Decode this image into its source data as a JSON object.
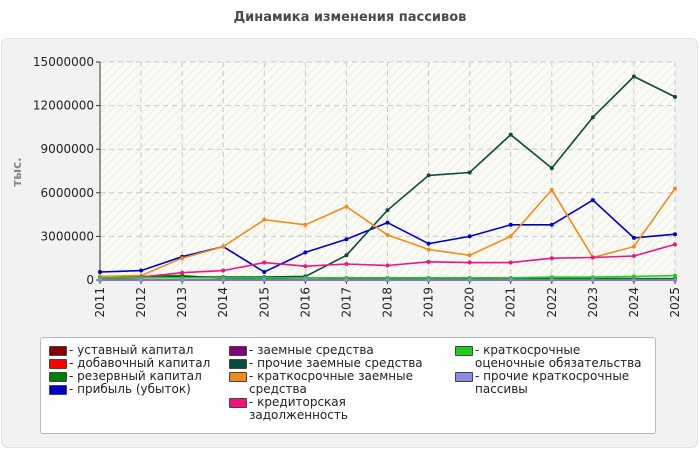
{
  "title": "Динамика изменения пассивов",
  "chart_data": {
    "type": "line",
    "title": "Динамика изменения пассивов",
    "ylabel": "тыс.",
    "xlabel": "",
    "ylim": [
      0,
      15000000
    ],
    "yticks": [
      "0",
      "3000000",
      "6000000",
      "9000000",
      "12000000",
      "15000000"
    ],
    "x": [
      "2011",
      "2012",
      "2013",
      "2014",
      "2015",
      "2016",
      "2017",
      "2018",
      "2019",
      "2020",
      "2021",
      "2022",
      "2023",
      "2024",
      "2025"
    ],
    "grid": true,
    "legend_position": "bottom",
    "series": [
      {
        "name": "уставный капитал",
        "color": "#8b0000",
        "values": [
          10000,
          10000,
          10000,
          10000,
          10000,
          10000,
          10000,
          10000,
          10000,
          10000,
          10000,
          10000,
          10000,
          10000,
          10000
        ]
      },
      {
        "name": "добавочный капитал",
        "color": "#ff0000",
        "values": [
          0,
          0,
          0,
          0,
          0,
          0,
          0,
          0,
          0,
          0,
          0,
          0,
          0,
          0,
          0
        ]
      },
      {
        "name": "резервный капитал",
        "color": "#008000",
        "values": [
          200000,
          250000,
          300000,
          100000,
          100000,
          150000,
          100000,
          100000,
          100000,
          100000,
          100000,
          100000,
          100000,
          100000,
          100000
        ]
      },
      {
        "name": "прибыль (убыток)",
        "color": "#0000cc",
        "values": [
          550000,
          650000,
          1600000,
          2300000,
          550000,
          1900000,
          2800000,
          3950000,
          2500000,
          3000000,
          3800000,
          3800000,
          5500000,
          2900000,
          3150000
        ]
      },
      {
        "name": "заемные средства",
        "color": "#800080",
        "values": [
          0,
          0,
          0,
          0,
          0,
          0,
          0,
          0,
          0,
          0,
          0,
          0,
          0,
          0,
          0
        ]
      },
      {
        "name": "прочие заемные средства",
        "color": "#0b4a40",
        "values": [
          100000,
          150000,
          200000,
          200000,
          200000,
          250000,
          1700000,
          4800000,
          7200000,
          7400000,
          10000000,
          7700000,
          11200000,
          14000000,
          12600000
        ]
      },
      {
        "name": "краткосрочные заемные средства",
        "color": "#f28a1e",
        "values": [
          250000,
          300000,
          1500000,
          2300000,
          4150000,
          3800000,
          5050000,
          3100000,
          2100000,
          1700000,
          3000000,
          6200000,
          1550000,
          2300000,
          6300000
        ]
      },
      {
        "name": "кредиторская задолженность",
        "color": "#f0157e",
        "values": [
          100000,
          200000,
          500000,
          650000,
          1200000,
          950000,
          1100000,
          1000000,
          1250000,
          1200000,
          1200000,
          1500000,
          1550000,
          1650000,
          2450000
        ]
      },
      {
        "name": "краткосрочные оценочные обязательства",
        "color": "#1ed01e",
        "values": [
          150000,
          150000,
          150000,
          150000,
          150000,
          150000,
          150000,
          150000,
          150000,
          150000,
          150000,
          200000,
          200000,
          250000,
          300000
        ]
      },
      {
        "name": "прочие краткосрочные пассивы",
        "color": "#8a8ae8",
        "values": [
          0,
          0,
          0,
          0,
          0,
          0,
          0,
          0,
          0,
          0,
          0,
          0,
          0,
          0,
          0
        ]
      }
    ]
  },
  "legend_columns": [
    [
      0,
      1,
      2,
      3
    ],
    [
      4,
      5,
      6,
      7
    ],
    [
      8,
      9
    ]
  ]
}
